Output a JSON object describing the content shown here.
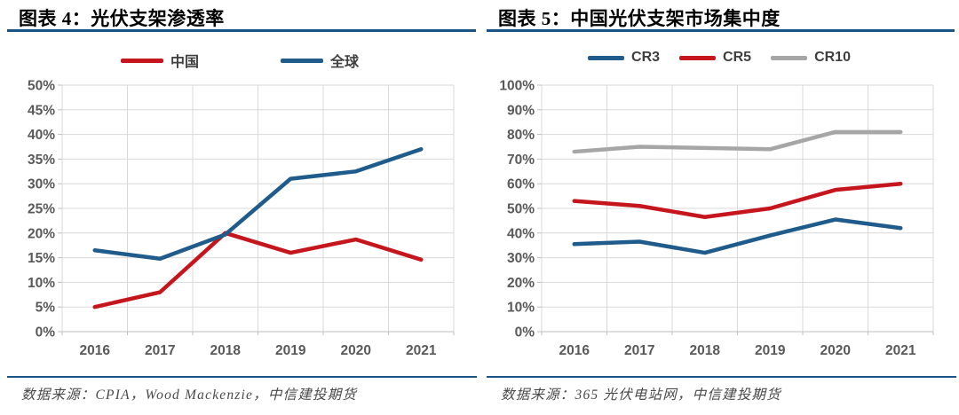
{
  "colors": {
    "accent_rule": "#1A5484",
    "grid": "#D9D9D9",
    "axis": "#BFBFBF",
    "tick_label": "#595959",
    "series_blue": "#1F5C8B",
    "series_red": "#C5161D",
    "series_gray": "#A6A6A6"
  },
  "chart_data": [
    {
      "type": "line",
      "title": "图表 4：光伏支架渗透率",
      "source_note": "数据来源：CPIA，Wood Mackenzie，中信建投期货",
      "categories": [
        "2016",
        "2017",
        "2018",
        "2019",
        "2020",
        "2021"
      ],
      "series": [
        {
          "name": "中国",
          "color": "#C5161D",
          "values": [
            5,
            8,
            20,
            16,
            18.7,
            14.6
          ]
        },
        {
          "name": "全球",
          "color": "#1F5C8B",
          "values": [
            16.5,
            14.8,
            19.7,
            31,
            32.5,
            37
          ]
        }
      ],
      "ylim": [
        0,
        50
      ],
      "ytick_step": 5,
      "ytick_format": "percent",
      "legend_position": "top",
      "grid": true
    },
    {
      "type": "line",
      "title": "图表 5：中国光伏支架市场集中度",
      "source_note": "数据来源：365 光伏电站网，中信建投期货",
      "categories": [
        "2016",
        "2017",
        "2018",
        "2019",
        "2020",
        "2021"
      ],
      "series": [
        {
          "name": "CR3",
          "color": "#1F5C8B",
          "values": [
            35.5,
            36.5,
            32,
            39,
            45.5,
            42
          ]
        },
        {
          "name": "CR5",
          "color": "#C5161D",
          "values": [
            53,
            51,
            46.5,
            50,
            57.5,
            60
          ]
        },
        {
          "name": "CR10",
          "color": "#A6A6A6",
          "values": [
            73,
            75,
            74.5,
            74,
            81,
            81
          ]
        }
      ],
      "ylim": [
        0,
        100
      ],
      "ytick_step": 10,
      "ytick_format": "percent",
      "legend_position": "top",
      "grid": true
    }
  ]
}
